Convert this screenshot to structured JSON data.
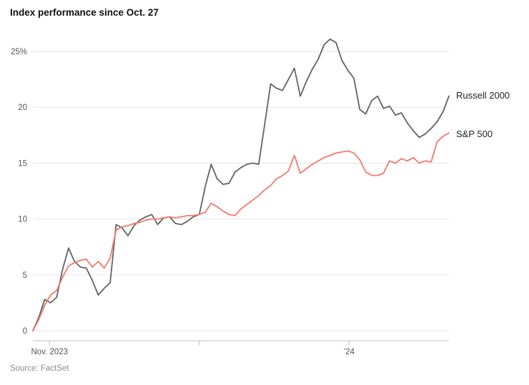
{
  "title": "Index performance since Oct. 27",
  "source": "Source: FactSet",
  "series_labels": {
    "russell": "Russell 2000",
    "sp": "S&P 500"
  },
  "colors": {
    "russell_line": "#636363",
    "sp_line": "#f4786b",
    "gridline": "#e5e5e5",
    "axis": "#bfbfbf",
    "tick_text": "#555555"
  },
  "chart_data": {
    "type": "line",
    "title": "Index performance since Oct. 27",
    "xlabel": "",
    "ylabel": "",
    "unit": "%",
    "ylim": [
      0,
      25
    ],
    "yticks": [
      0,
      5,
      10,
      15,
      20,
      25
    ],
    "ytick_labels": [
      "0",
      "5",
      "10",
      "15",
      "20",
      "25%"
    ],
    "grid": "horizontal",
    "legend_position": "right-of-line-end",
    "xticks": [
      {
        "label": "Nov. 2023",
        "pos": 0.04
      },
      {
        "label": "",
        "pos": 0.4
      },
      {
        "label": "’24",
        "pos": 0.76
      }
    ],
    "series": [
      {
        "name": "Russell 2000",
        "color": "#636363",
        "values": [
          0,
          1.2,
          2.8,
          2.5,
          3.0,
          5.5,
          7.4,
          6.2,
          5.7,
          5.6,
          4.5,
          3.2,
          3.8,
          4.3,
          9.5,
          9.2,
          8.5,
          9.4,
          9.9,
          10.2,
          10.4,
          9.5,
          10.1,
          10.2,
          9.6,
          9.5,
          9.8,
          10.2,
          10.4,
          12.9,
          14.9,
          13.6,
          13.1,
          13.2,
          14.2,
          14.6,
          14.9,
          15.0,
          14.9,
          18.5,
          22.1,
          21.7,
          21.5,
          22.5,
          23.5,
          21.0,
          22.3,
          23.4,
          24.3,
          25.6,
          26.1,
          25.8,
          24.2,
          23.3,
          22.6,
          19.8,
          19.4,
          20.6,
          21.0,
          19.9,
          20.1,
          19.3,
          19.5,
          18.6,
          17.9,
          17.3,
          17.6,
          18.1,
          18.7,
          19.6,
          21.0
        ]
      },
      {
        "name": "S&P 500",
        "color": "#f4786b",
        "values": [
          0,
          1.0,
          2.3,
          3.2,
          3.6,
          4.8,
          5.8,
          6.1,
          6.3,
          6.4,
          5.7,
          6.2,
          5.6,
          6.5,
          9.0,
          9.3,
          9.4,
          9.6,
          9.7,
          9.9,
          10.0,
          10.0,
          10.1,
          10.2,
          10.1,
          10.2,
          10.3,
          10.3,
          10.4,
          10.6,
          11.4,
          11.1,
          10.7,
          10.4,
          10.3,
          10.9,
          11.3,
          11.7,
          12.1,
          12.6,
          13.0,
          13.6,
          13.9,
          14.3,
          15.7,
          14.1,
          14.5,
          14.9,
          15.2,
          15.5,
          15.7,
          15.9,
          16.0,
          16.1,
          15.9,
          15.3,
          14.2,
          13.9,
          13.9,
          14.1,
          15.2,
          15.0,
          15.4,
          15.2,
          15.5,
          15.0,
          15.2,
          15.1,
          16.9,
          17.4,
          17.7
        ]
      }
    ]
  }
}
